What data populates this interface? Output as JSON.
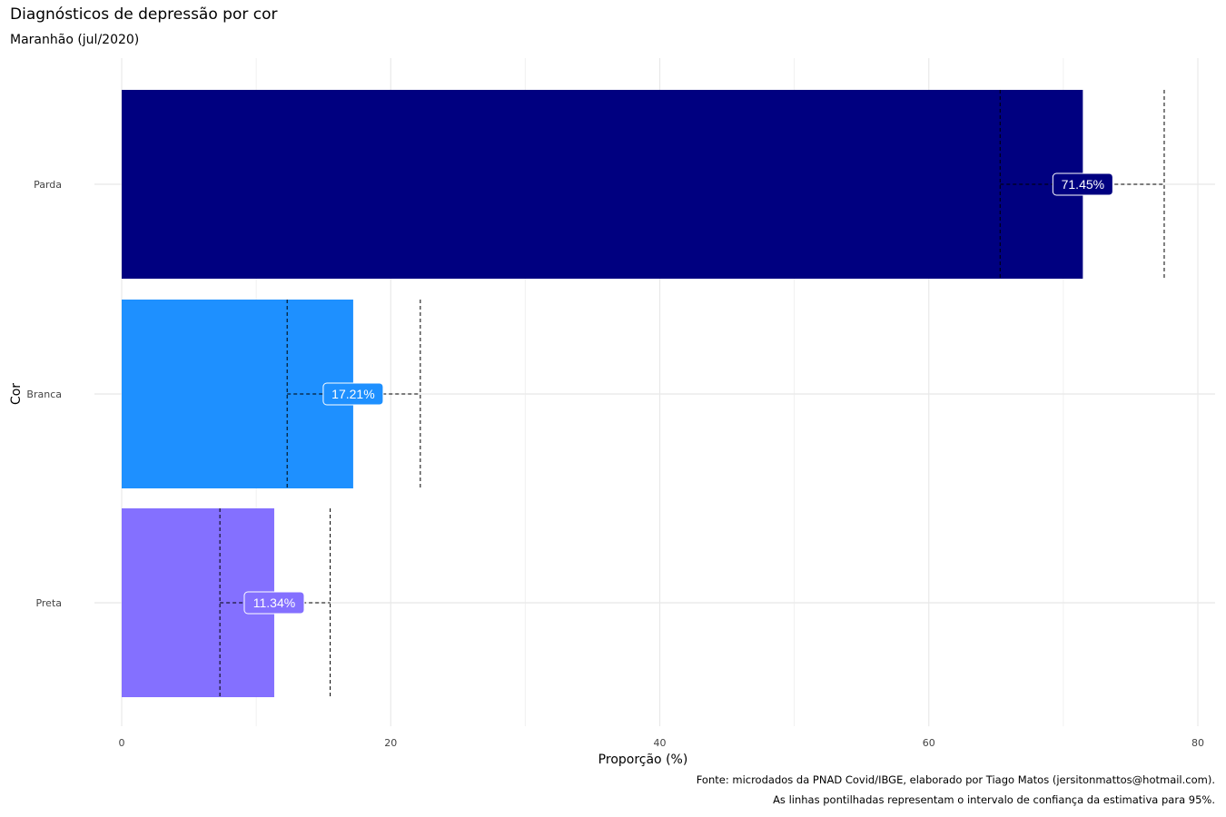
{
  "title": "Diagnósticos de depressão por cor",
  "subtitle": "Maranhão (jul/2020)",
  "caption_1": "Fonte: microdados da PNAD Covid/IBGE, elaborado por Tiago Matos (jersitonmattos@hotmail.com).",
  "caption_2": "As linhas pontilhadas representam o intervalo de confiança da estimativa para 95%.",
  "chart_data": {
    "type": "bar",
    "orientation": "horizontal",
    "xlabel": "Proporção (%)",
    "ylabel": "Cor",
    "xlim": [
      0,
      80
    ],
    "x_ticks": [
      0,
      20,
      40,
      60,
      80
    ],
    "grid": true,
    "categories": [
      "Parda",
      "Branca",
      "Preta"
    ],
    "values": [
      71.45,
      17.21,
      11.34
    ],
    "labels": [
      "71.45%",
      "17.21%",
      "11.34%"
    ],
    "ci_low": [
      65.3,
      12.3,
      7.3
    ],
    "ci_high": [
      77.5,
      22.2,
      15.5
    ],
    "colors": [
      "#000080",
      "#1E90FF",
      "#8470FF"
    ]
  }
}
